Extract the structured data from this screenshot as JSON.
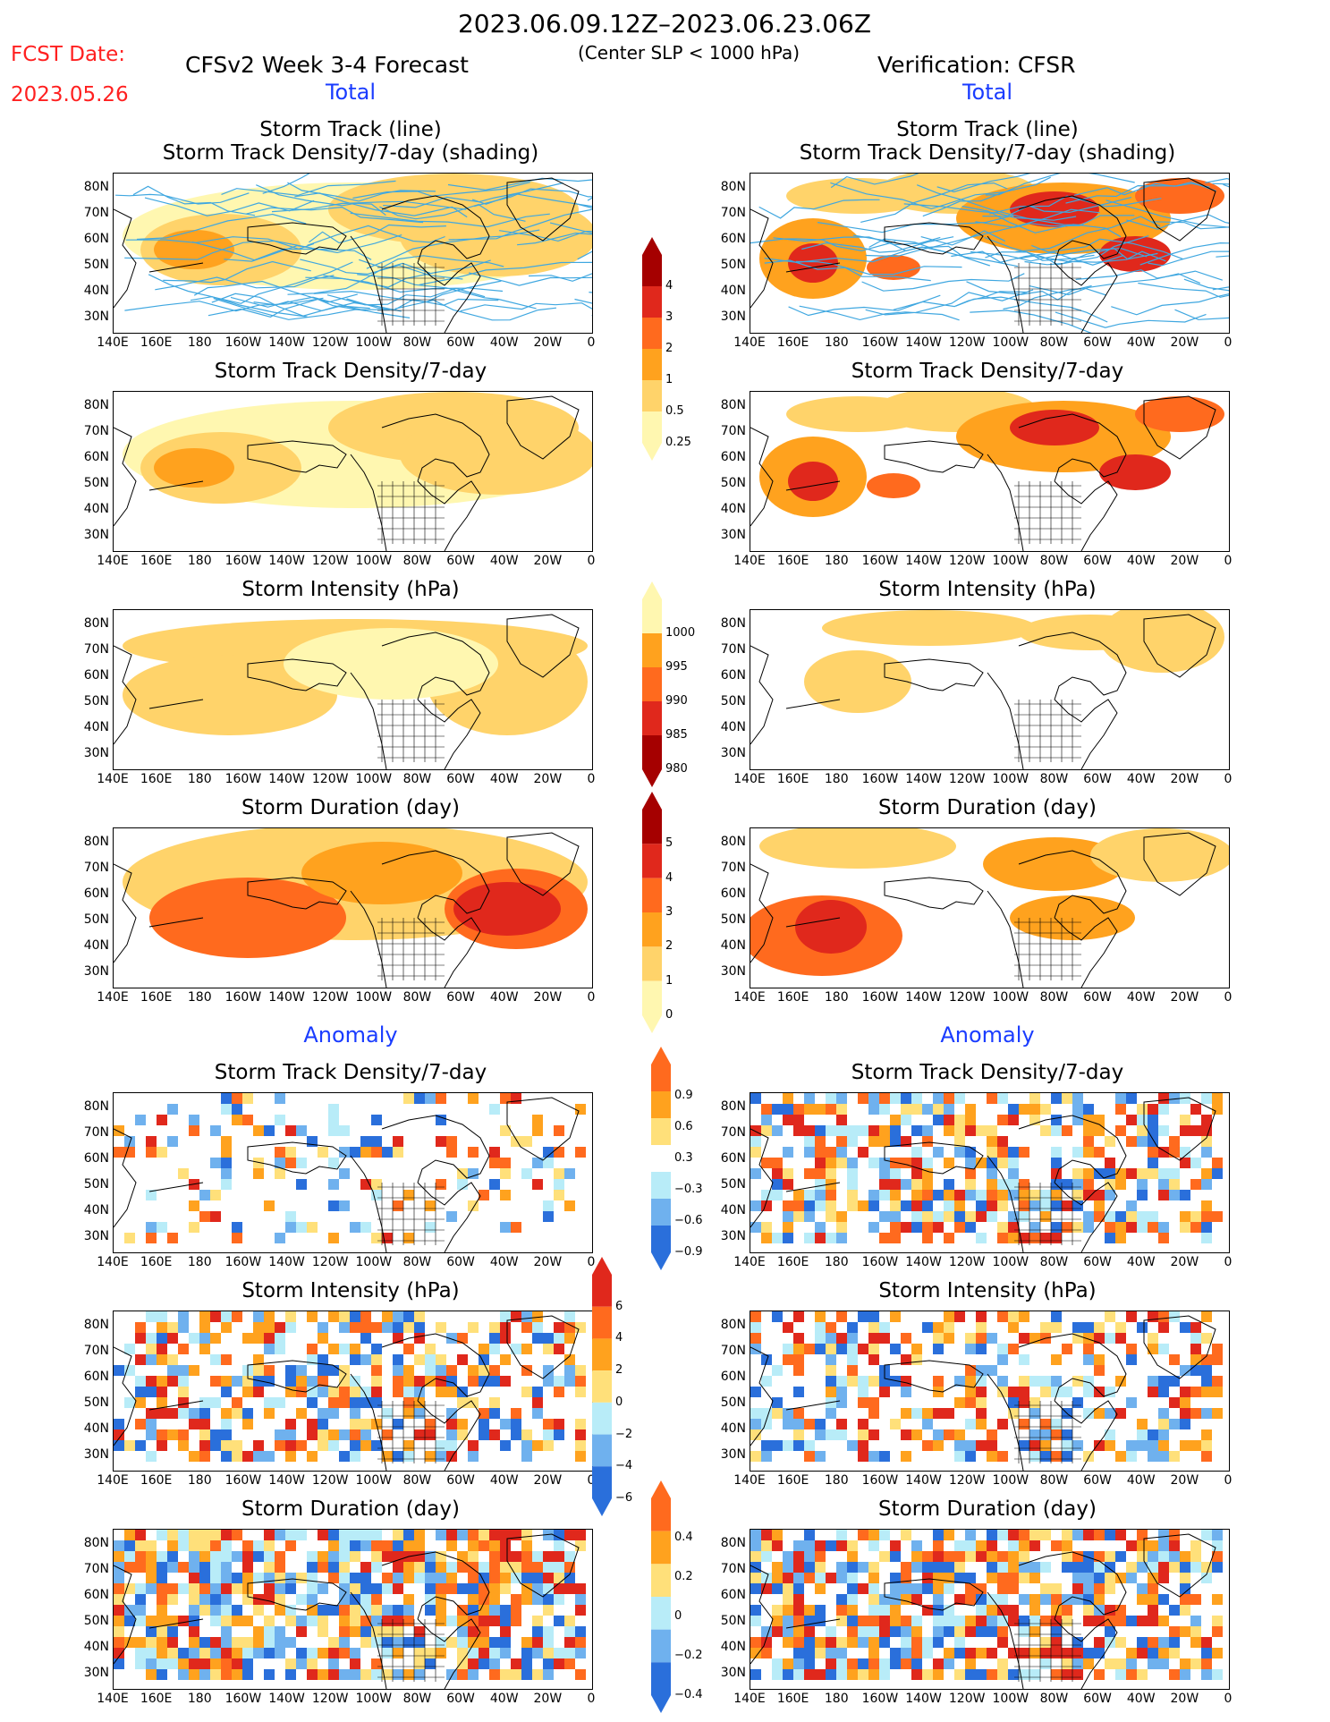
{
  "header": {
    "date_range": "2023.06.09.12Z–2023.06.23.06Z",
    "fcst_label": "FCST Date:",
    "fcst_date": "2023.05.26",
    "left_title": "CFSv2 Week 3-4 Forecast",
    "center_note": "(Center SLP < 1000 hPa)",
    "right_title": "Verification: CFSR"
  },
  "sections": {
    "total": "Total",
    "anomaly": "Anomaly"
  },
  "panel_titles": {
    "track_line": "Storm Track (line)",
    "track_line_shading": "Storm Track Density/7-day (shading)",
    "density": "Storm Track Density/7-day",
    "intensity": "Storm Intensity (hPa)",
    "duration": "Storm Duration (day)"
  },
  "axes": {
    "lat_labels": [
      "80N",
      "70N",
      "60N",
      "50N",
      "40N",
      "30N"
    ],
    "lon_labels": [
      "140E",
      "160E",
      "180",
      "160W",
      "140W",
      "120W",
      "100W",
      "80W",
      "60W",
      "40W",
      "20W",
      "0"
    ]
  },
  "colorbars": {
    "density": {
      "labels": [
        "4",
        "3",
        "2",
        "1",
        "0.5",
        "0.25"
      ],
      "colors": [
        "#a50000",
        "#e0281c",
        "#ff6a1e",
        "#ffa21e",
        "#ffd36a",
        "#fff7b0"
      ]
    },
    "intensity": {
      "labels": [
        "1000",
        "995",
        "990",
        "985",
        "980"
      ],
      "colors": [
        "#fff7b0",
        "#ffa21e",
        "#ff6a1e",
        "#e0281c",
        "#a50000"
      ]
    },
    "duration": {
      "labels": [
        "5",
        "4",
        "3",
        "2",
        "1",
        "0"
      ],
      "colors": [
        "#a50000",
        "#e0281c",
        "#ff6a1e",
        "#ffa21e",
        "#ffd36a",
        "#fff7b0"
      ]
    },
    "anom_density": {
      "labels": [
        "0.9",
        "0.6",
        "0.3",
        "−0.3",
        "−0.6",
        "−0.9"
      ],
      "colors": [
        "#ff6a1e",
        "#ffa21e",
        "#ffe07a",
        "#ffffff",
        "#b8ecf8",
        "#6fb1ee",
        "#2a6fdb"
      ]
    },
    "anom_intensity": {
      "labels": [
        "6",
        "4",
        "2",
        "0",
        "−2",
        "−4",
        "−6"
      ],
      "colors": [
        "#e0281c",
        "#ff6a1e",
        "#ffa21e",
        "#ffe07a",
        "#b8ecf8",
        "#6fb1ee",
        "#2a6fdb"
      ]
    },
    "anom_duration": {
      "labels": [
        "0.4",
        "0.2",
        "0",
        "−0.2",
        "−0.4"
      ],
      "colors": [
        "#ff6a1e",
        "#ffa21e",
        "#ffe07a",
        "#b8ecf8",
        "#6fb1ee",
        "#2a6fdb"
      ]
    }
  },
  "colors": {
    "track_line": "#3fa7e0",
    "coast": "#000000"
  }
}
